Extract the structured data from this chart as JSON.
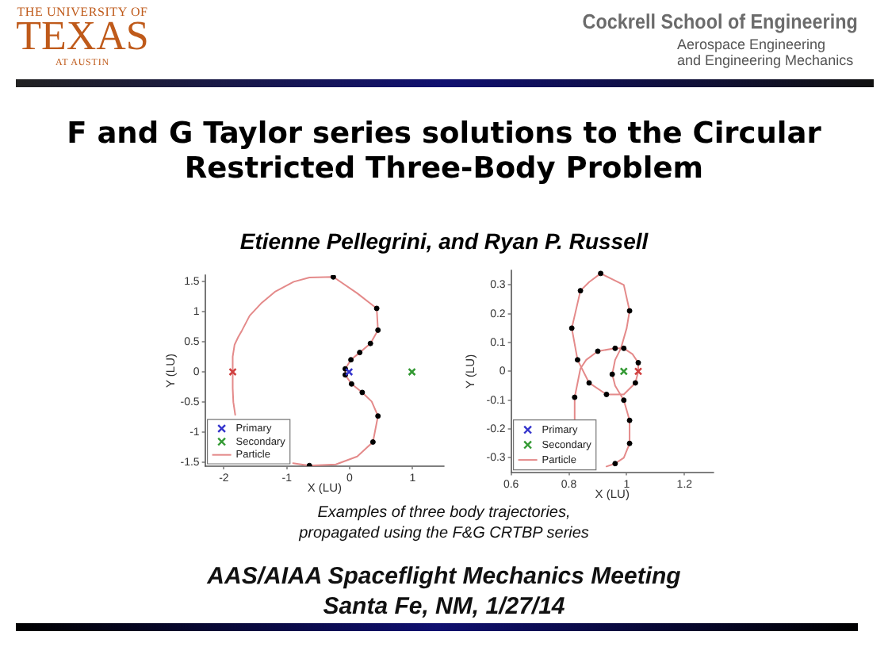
{
  "chart_data": [
    {
      "type": "scatter",
      "title": "F and G Taylor series solutions to the Circular Restricted Three-Body Problem",
      "subtitle": "Etienne Pellegrini, and Ryan P. Russell",
      "annotations": [
        "THE UNIVERSITY OF",
        "TEXAS",
        "AT AUSTIN",
        "Cockrell School of Engineering",
        "Aerospace Engineering",
        "and Engineering Mechanics",
        "Examples of three body trajectories, propagated using the F&G CRTBP series",
        "AAS/AIAA Spaceflight Mechanics Meeting",
        "Santa Fe, NM, 1/27/14"
      ],
      "xlabel": "X (LU)",
      "ylabel": "Y (LU)",
      "xlim": [
        -2.3,
        1.5
      ],
      "xticks": [
        -2,
        -1,
        0,
        1
      ],
      "ylim": [
        -1.56,
        1.6
      ],
      "yticks": [
        -1.5,
        -1,
        -0.5,
        0,
        0.5,
        1,
        1.5
      ],
      "legend": "bottom left",
      "series": [
        {
          "name": "Primary",
          "type": "scatter",
          "marker": "cross",
          "color": "#3333cc",
          "x": [
            -0.01
          ],
          "values": [
            0
          ]
        },
        {
          "name": "Secondary",
          "type": "scatter",
          "marker": "cross",
          "color": "#339933",
          "x": [
            0.99
          ],
          "values": [
            0
          ]
        },
        {
          "name": "Particle",
          "type": "line",
          "marker": "none",
          "color": "#e48a8a",
          "x": [
            -1.86,
            -1.86,
            -1.83,
            -1.77,
            -1.71,
            -1.59,
            -1.41,
            -1.18,
            -0.89,
            -0.64,
            -0.26,
            0.12,
            0.43,
            0.45,
            0.33,
            0.16,
            0.02,
            -0.07,
            -0.07,
            0.03,
            0.2,
            0.35,
            0.45,
            0.37,
            0.12,
            -0.22,
            -0.64,
            -0.9,
            -1.4,
            -1.82,
            -1.85,
            -1.86,
            -1.86
          ],
          "values": [
            0,
            0.25,
            0.45,
            0.58,
            0.69,
            0.93,
            1.13,
            1.33,
            1.49,
            1.56,
            1.57,
            1.3,
            1.05,
            0.69,
            0.47,
            0.32,
            0.2,
            0.05,
            -0.05,
            -0.2,
            -0.34,
            -0.49,
            -0.73,
            -1.16,
            -1.4,
            -1.53,
            -1.55,
            -1.51,
            null,
            -0.71,
            -0.5,
            -0.27,
            0
          ]
        },
        {
          "type": "scatter",
          "marker": "circle",
          "color": "#000000",
          "x": [
            -0.26,
            0.43,
            0.45,
            0.33,
            0.16,
            0.02,
            -0.07,
            -0.07,
            0.03,
            0.2,
            0.45,
            0.37,
            -0.64
          ],
          "values": [
            1.57,
            1.05,
            0.69,
            0.47,
            0.32,
            0.2,
            0.05,
            -0.05,
            -0.2,
            -0.34,
            -0.73,
            -1.16,
            -1.55
          ]
        },
        {
          "type": "scatter",
          "marker": "cross",
          "color": "#d04040",
          "x": [
            -1.86
          ],
          "values": [
            0
          ]
        }
      ]
    },
    {
      "type": "scatter",
      "xlabel": "X (LU)",
      "ylabel": "Y (LU)",
      "xlim": [
        0.6,
        1.3
      ],
      "xticks": [
        0.6,
        0.8,
        1,
        1.2
      ],
      "ylim": [
        -0.35,
        0.35
      ],
      "yticks": [
        -0.3,
        -0.2,
        -0.1,
        0,
        0.1,
        0.2,
        0.3
      ],
      "legend": "bottom left",
      "series": [
        {
          "name": "Primary",
          "type": "scatter",
          "marker": "cross",
          "color": "#3333cc"
        },
        {
          "name": "Secondary",
          "type": "scatter",
          "marker": "cross",
          "color": "#339933",
          "x": [
            0.99
          ],
          "values": [
            0
          ]
        },
        {
          "name": "Particle",
          "type": "line",
          "marker": "none",
          "color": "#e48a8a",
          "x": [
            1.04,
            1.04,
            1.02,
            0.99,
            0.96,
            0.9,
            0.86,
            0.84,
            0.83,
            0.82,
            0.82,
            0.85,
            0.93,
            0.96,
            0.99,
            1.01,
            1.01,
            0.99,
            0.96,
            0.95,
            0.96,
            0.98,
            1.0,
            1.01,
            0.99,
            0.91,
            0.87,
            0.84,
            0.81,
            0.83,
            0.87,
            0.93,
            0.99,
            1.03,
            1.04
          ],
          "values": [
            0,
            0.03,
            0.06,
            0.08,
            0.08,
            0.07,
            0.04,
            0.01,
            -0.04,
            -0.09,
            -0.17,
            null,
            -0.33,
            -0.32,
            -0.3,
            -0.25,
            -0.17,
            -0.1,
            -0.05,
            -0.01,
            0.04,
            0.08,
            0.15,
            0.21,
            0.3,
            0.34,
            0.31,
            0.28,
            0.15,
            0.04,
            -0.04,
            -0.08,
            -0.08,
            -0.04,
            0
          ]
        },
        {
          "type": "scatter",
          "marker": "circle",
          "color": "#000000",
          "x": [
            1.04,
            0.99,
            0.96,
            0.9,
            0.82,
            0.96,
            1.01,
            1.01,
            0.99,
            0.95,
            1.01,
            0.91,
            0.84,
            0.81,
            0.83,
            0.87,
            0.93,
            1.03
          ],
          "values": [
            0.03,
            0.08,
            0.08,
            0.07,
            -0.09,
            -0.32,
            -0.25,
            -0.17,
            -0.1,
            -0.01,
            0.21,
            0.34,
            0.28,
            0.15,
            0.04,
            -0.04,
            -0.08,
            -0.04
          ]
        },
        {
          "type": "scatter",
          "marker": "cross",
          "color": "#d04040",
          "x": [
            1.04
          ],
          "values": [
            0
          ]
        }
      ]
    }
  ]
}
